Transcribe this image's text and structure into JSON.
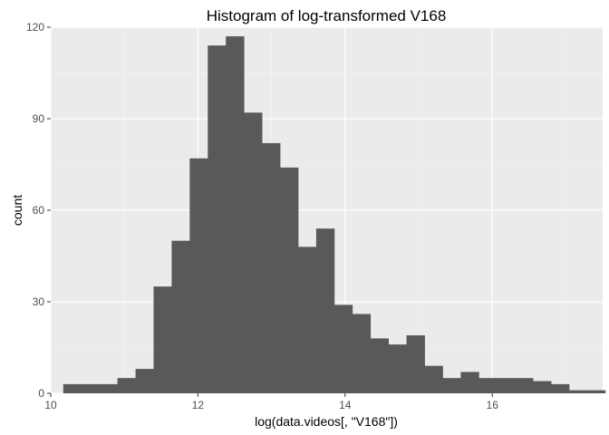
{
  "chart_data": {
    "type": "bar",
    "title": "Histogram of log-transformed V168",
    "xlabel": "log(data.videos[, \"V168\"])",
    "ylabel": "count",
    "xlim": [
      10.0,
      17.5
    ],
    "ylim": [
      0,
      120
    ],
    "xticks": [
      "10",
      "12",
      "14",
      "16"
    ],
    "yticks": [
      "0",
      "30",
      "60",
      "90",
      "120"
    ],
    "bin_start": 10.17,
    "bin_width": 0.2455,
    "counts": [
      3,
      3,
      3,
      5,
      8,
      35,
      50,
      77,
      114,
      117,
      92,
      82,
      74,
      48,
      54,
      29,
      26,
      18,
      16,
      19,
      9,
      5,
      7,
      5,
      5,
      5,
      4,
      3,
      1,
      1
    ],
    "grid": true,
    "colors": {
      "bar": "#595959",
      "panel": "#ebebeb",
      "grid_major": "#ffffff",
      "grid_minor": "#f5f5f5"
    }
  }
}
